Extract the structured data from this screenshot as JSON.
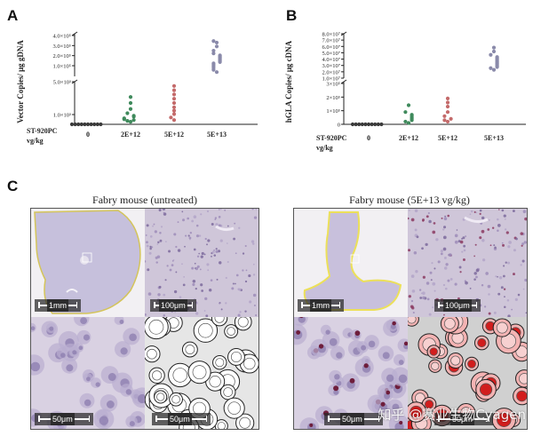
{
  "panels": {
    "a": {
      "letter": "A"
    },
    "b": {
      "letter": "B"
    },
    "c": {
      "letter": "C"
    }
  },
  "chart_data": [
    {
      "type": "scatter",
      "panel": "A",
      "ylabel": "Vector Copies/ μg gDNA",
      "x_row_label_1": "ST-920PC",
      "x_row_label_2": "vg/kg",
      "categories": [
        "0",
        "2E+12",
        "5E+12",
        "5E+13"
      ],
      "y_scale": "broken-axis",
      "y_ticks_lower": [
        "1.0×10³",
        "5.0×10³"
      ],
      "y_ticks_upper": [
        "1.0×10⁵",
        "2.0×10⁵",
        "3.0×10⁵",
        "4.0×10⁵"
      ],
      "groups": [
        {
          "category": "0",
          "color": "#3a3a3a",
          "values": [
            0,
            0,
            0,
            0,
            0,
            0,
            0,
            0,
            0,
            0
          ]
        },
        {
          "category": "2E+12",
          "color": "#3f8a5c",
          "values": [
            300,
            400,
            500,
            600,
            700,
            900,
            1000,
            1300,
            1800,
            2500,
            3200
          ]
        },
        {
          "category": "5E+12",
          "color": "#c46a6a",
          "values": [
            500,
            800,
            1200,
            1600,
            2000,
            2500,
            3000,
            3500,
            4000,
            4500
          ]
        },
        {
          "category": "5E+13",
          "color": "#8a8aaa",
          "values": [
            30000,
            40000,
            50000,
            60000,
            70000,
            80000,
            90000,
            100000,
            110000,
            120000,
            130000,
            140000,
            150000,
            170000,
            200000,
            250000,
            300000,
            320000
          ]
        }
      ]
    },
    {
      "type": "scatter",
      "panel": "B",
      "ylabel": "hGLA Copies/ μg cDNA",
      "x_row_label_1": "ST-920PC",
      "x_row_label_2": "vg/kg",
      "categories": [
        "0",
        "2E+12",
        "5E+12",
        "5E+13"
      ],
      "y_scale": "broken-axis",
      "y_ticks_lower": [
        "0",
        "1×10⁵",
        "2×10⁵",
        "3×10⁵"
      ],
      "y_ticks_upper": [
        "1.0×10⁷",
        "2.0×10⁷",
        "3.0×10⁷",
        "4.0×10⁷",
        "5.0×10⁷",
        "6.0×10⁷",
        "7.0×10⁷",
        "8.0×10⁷"
      ],
      "groups": [
        {
          "category": "0",
          "color": "#3a3a3a",
          "values": [
            0,
            0,
            0,
            0,
            0,
            0,
            0,
            0,
            0,
            0
          ]
        },
        {
          "category": "2E+12",
          "color": "#3f8a5c",
          "values": [
            10000,
            20000,
            30000,
            40000,
            50000,
            60000,
            70000,
            90000,
            140000
          ]
        },
        {
          "category": "5E+12",
          "color": "#c46a6a",
          "values": [
            20000,
            30000,
            40000,
            60000,
            90000,
            130000,
            160000,
            190000
          ]
        },
        {
          "category": "5E+13",
          "color": "#8a8aaa",
          "values": [
            15000000,
            18000000,
            20000000,
            22000000,
            24000000,
            26000000,
            28000000,
            30000000,
            32000000,
            34000000,
            36000000,
            38000000,
            42000000,
            48000000,
            55000000
          ]
        }
      ]
    }
  ],
  "histology": {
    "untreated": {
      "title": "Fabry mouse (untreated)",
      "scale_1mm": "1mm",
      "scale_100um": "100μm",
      "scale_50um_a": "50μm",
      "scale_50um_b": "50μm"
    },
    "treated": {
      "title": "Fabry mouse (5E+13 vg/kg)",
      "scale_1mm": "1mm",
      "scale_100um": "100μm",
      "scale_50um_a": "50μm",
      "scale_50um_b": "50μm"
    }
  },
  "watermark": "知乎 @赛业生物Cyagen"
}
